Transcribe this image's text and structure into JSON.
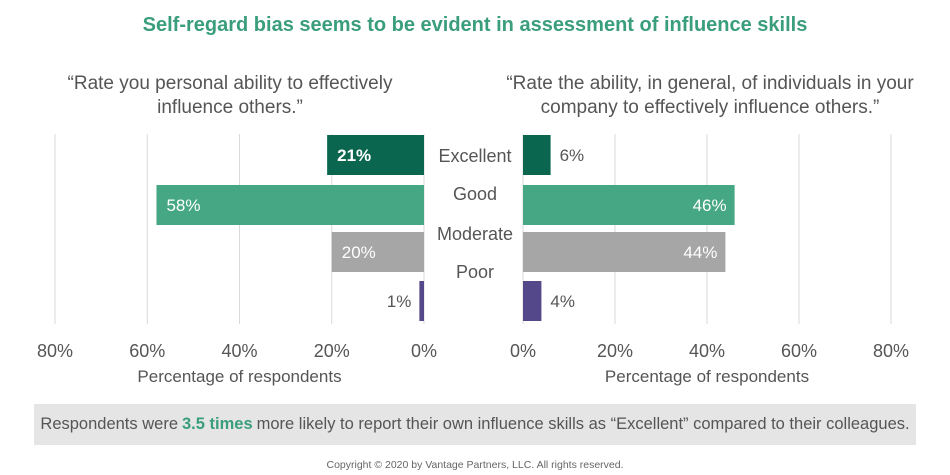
{
  "title": "Self-regard bias seems to be evident in assessment of influence skills",
  "callout": {
    "prefix": "Respondents were",
    "highlight": "3.5 times",
    "suffix": "more likely to report their own influence skills as “Excellent” compared to their colleagues."
  },
  "copyright": "Copyright © 2020 by Vantage Partners, LLC. All rights reserved.",
  "colors": {
    "Excellent": "#0b6650",
    "Good": "#46a784",
    "Moderate": "#a6a6a6",
    "Poor": "#54478a",
    "grid": "#d9d9d9",
    "text": "#555555",
    "title": "#3a9e7c"
  },
  "chart_data": [
    {
      "type": "bar",
      "orientation": "horizontal",
      "direction": "leftward",
      "title": "“Rate you personal ability to effectively influence others.”",
      "categories": [
        "Excellent",
        "Good",
        "Moderate",
        "Poor"
      ],
      "values": [
        21,
        58,
        20,
        1
      ],
      "data_labels": [
        "21%",
        "58%",
        "20%",
        "1%"
      ],
      "xlabel": "Percentage of respondents",
      "xlim": [
        0,
        80
      ],
      "xticks": [
        "80%",
        "60%",
        "40%",
        "20%",
        "0%"
      ],
      "grid": true
    },
    {
      "type": "bar",
      "orientation": "horizontal",
      "direction": "rightward",
      "title": "“Rate the ability, in general, of individuals in your company to effectively influence others.”",
      "categories": [
        "Excellent",
        "Good",
        "Moderate",
        "Poor"
      ],
      "values": [
        6,
        46,
        44,
        4
      ],
      "data_labels": [
        "6%",
        "46%",
        "44%",
        "4%"
      ],
      "xlabel": "Percentage of respondents",
      "xlim": [
        0,
        80
      ],
      "xticks": [
        "0%",
        "20%",
        "40%",
        "60%",
        "80%"
      ],
      "grid": true
    }
  ]
}
